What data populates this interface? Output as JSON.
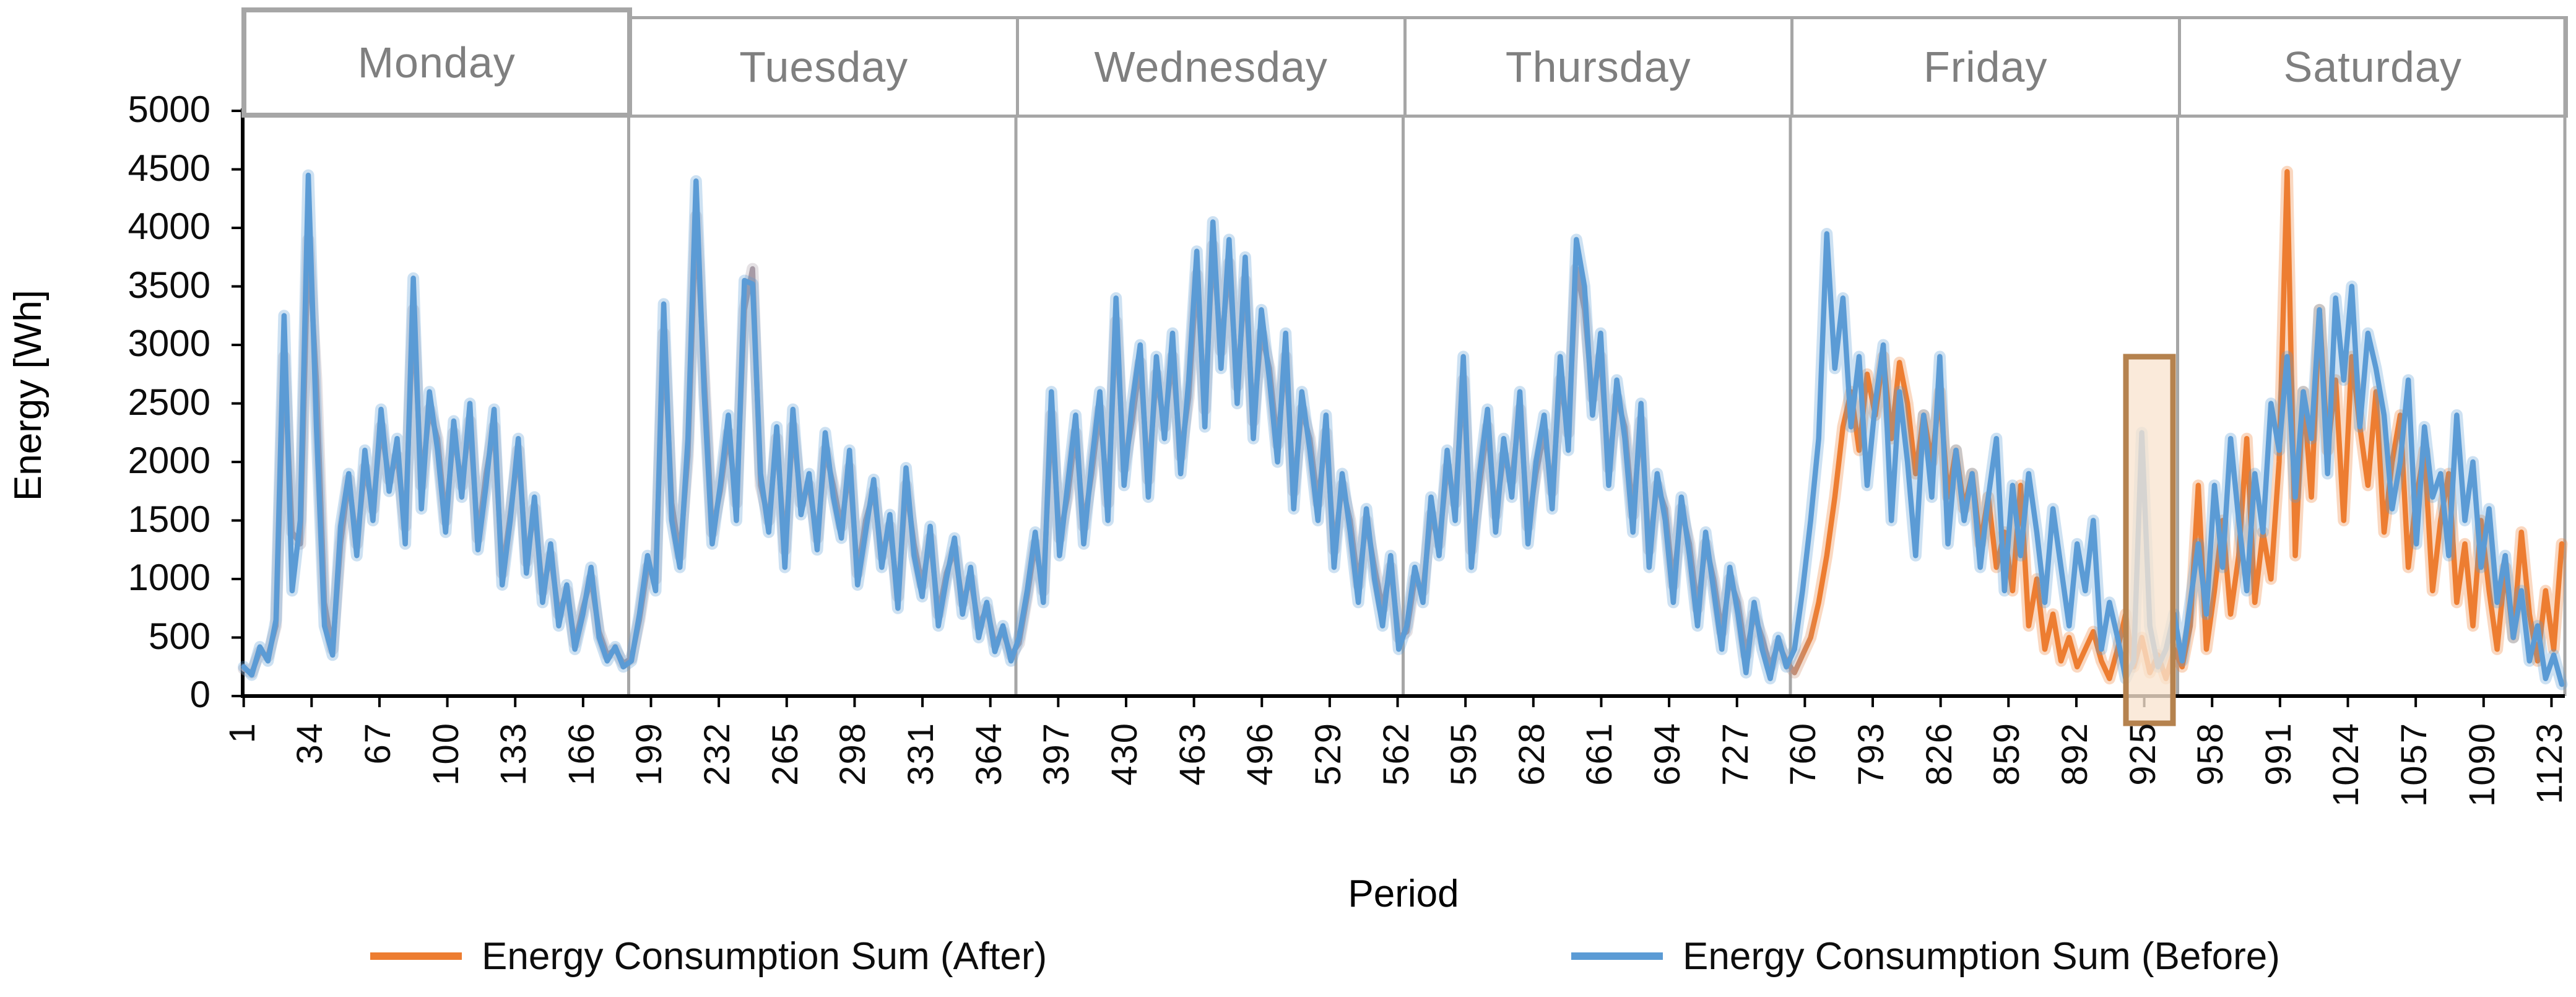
{
  "chart_data": {
    "type": "line",
    "title": "",
    "xlabel": "Period",
    "ylabel": "Energy [Wh]",
    "ylim": [
      0,
      5000
    ],
    "y_tick_labels": [
      "5000",
      "4500",
      "4000",
      "3500",
      "3000",
      "2500",
      "2000",
      "1500",
      "1000",
      "500",
      "0"
    ],
    "x_tick_labels": [
      "1",
      "34",
      "67",
      "100",
      "133",
      "166",
      "199",
      "232",
      "265",
      "298",
      "331",
      "364",
      "397",
      "430",
      "463",
      "496",
      "529",
      "562",
      "595",
      "628",
      "661",
      "694",
      "727",
      "760",
      "793",
      "826",
      "859",
      "892",
      "925",
      "958",
      "991",
      "1024",
      "1057",
      "1090",
      "1123"
    ],
    "x_range": [
      1,
      1129
    ],
    "grid": false,
    "legend_position": "bottom",
    "day_panels": [
      "Monday",
      "Tuesday",
      "Wednesday",
      "Thursday",
      "Friday",
      "Saturday"
    ],
    "highlight_region": {
      "period_start": 916,
      "period_end": 939,
      "value_top_wh": 2900,
      "value_bottom_wh": -230,
      "fill_color": "#F9E4CF",
      "border_color": "#B5824E"
    },
    "sampling": {
      "points": 288,
      "period_start": 1,
      "period_end": 1129
    },
    "series": [
      {
        "name": "Energy Consumption Sum (After)",
        "color": "#ED7D31",
        "overlap_shadow_color": "#A79BA6",
        "values": [
          230,
          200,
          380,
          340,
          600,
          2900,
          1400,
          1300,
          3900,
          2700,
          800,
          400,
          1300,
          1850,
          1300,
          1950,
          1600,
          2300,
          1850,
          2050,
          1450,
          3300,
          1800,
          2450,
          2200,
          1500,
          2250,
          1800,
          2350,
          1350,
          1900,
          2300,
          1050,
          1550,
          2100,
          1150,
          1600,
          900,
          1200,
          700,
          900,
          450,
          750,
          1000,
          550,
          350,
          400,
          280,
          320,
          650,
          1100,
          1000,
          3100,
          1650,
          1200,
          2050,
          4100,
          2750,
          1400,
          1750,
          2250,
          1650,
          3300,
          3650,
          1800,
          1500,
          2200,
          1250,
          2300,
          1650,
          1800,
          1350,
          2100,
          1800,
          1450,
          1950,
          1050,
          1500,
          1750,
          1200,
          1450,
          850,
          1800,
          1300,
          950,
          1350,
          700,
          1050,
          1250,
          800,
          1000,
          600,
          750,
          450,
          550,
          350,
          450,
          850,
          1300,
          900,
          2400,
          1350,
          1700,
          2250,
          1450,
          1900,
          2450,
          1650,
          3200,
          1950,
          2350,
          2850,
          1850,
          2750,
          2300,
          2900,
          2050,
          2550,
          3600,
          2450,
          3850,
          2950,
          3700,
          2650,
          3550,
          2350,
          3100,
          2800,
          2150,
          2900,
          1750,
          2450,
          2200,
          1650,
          2250,
          1250,
          1800,
          1500,
          950,
          1500,
          1100,
          750,
          1100,
          500,
          550,
          1000,
          900,
          1550,
          1300,
          1950,
          1650,
          2700,
          1250,
          1800,
          2300,
          1550,
          2050,
          1850,
          2450,
          1450,
          1900,
          2250,
          1750,
          2700,
          2250,
          3650,
          3300,
          2550,
          2900,
          1950,
          2550,
          2300,
          1550,
          2350,
          1250,
          1800,
          1600,
          950,
          1600,
          1300,
          750,
          1300,
          1000,
          550,
          1000,
          800,
          350,
          700,
          500,
          250,
          450,
          300,
          200,
          350,
          500,
          800,
          1200,
          1700,
          2300,
          2600,
          2100,
          2750,
          2400,
          2900,
          2200,
          2850,
          2500,
          1900,
          2400,
          2000,
          2600,
          1700,
          2100,
          1600,
          1900,
          1300,
          1700,
          1100,
          1400,
          900,
          1800,
          600,
          1000,
          400,
          700,
          300,
          500,
          250,
          400,
          550,
          300,
          150,
          400,
          700,
          250,
          500,
          200,
          350,
          150,
          400,
          250,
          600,
          1800,
          400,
          900,
          1500,
          700,
          1200,
          2200,
          800,
          1400,
          1000,
          2000,
          4480,
          1200,
          2600,
          1700,
          3300,
          2100,
          2700,
          1500,
          2900,
          2300,
          1800,
          2600,
          1400,
          2000,
          2400,
          1100,
          1700,
          2100,
          900,
          1500,
          1900,
          800,
          1300,
          600,
          1500,
          900,
          400,
          1100,
          500,
          1400,
          700,
          300,
          900,
          400,
          1300
        ]
      },
      {
        "name": "Energy Consumption Sum (Before)",
        "color": "#5B9BD5",
        "values": [
          250,
          180,
          420,
          300,
          650,
          3250,
          900,
          1500,
          4450,
          2300,
          600,
          350,
          1450,
          1900,
          1200,
          2100,
          1500,
          2450,
          1750,
          2200,
          1300,
          3570,
          1600,
          2600,
          2100,
          1400,
          2350,
          1700,
          2500,
          1250,
          1800,
          2450,
          950,
          1500,
          2200,
          1050,
          1700,
          800,
          1300,
          600,
          950,
          400,
          700,
          1100,
          500,
          300,
          420,
          250,
          300,
          700,
          1200,
          900,
          3350,
          1500,
          1100,
          2200,
          4400,
          2600,
          1300,
          1800,
          2400,
          1500,
          3550,
          3520,
          1900,
          1400,
          2300,
          1100,
          2450,
          1550,
          1900,
          1250,
          2250,
          1700,
          1350,
          2100,
          950,
          1400,
          1850,
          1100,
          1550,
          750,
          1950,
          1200,
          850,
          1450,
          600,
          1000,
          1350,
          700,
          1100,
          500,
          800,
          380,
          600,
          300,
          500,
          900,
          1400,
          800,
          2600,
          1200,
          1800,
          2400,
          1300,
          2000,
          2600,
          1500,
          3400,
          1800,
          2500,
          3000,
          1700,
          2900,
          2200,
          3100,
          1900,
          2700,
          3800,
          2300,
          4050,
          2800,
          3900,
          2500,
          3750,
          2200,
          3300,
          2700,
          2000,
          3100,
          1600,
          2600,
          2100,
          1500,
          2400,
          1100,
          1900,
          1400,
          800,
          1600,
          1000,
          600,
          1200,
          400,
          600,
          1100,
          800,
          1700,
          1200,
          2100,
          1500,
          2900,
          1100,
          1900,
          2450,
          1400,
          2200,
          1700,
          2600,
          1300,
          2000,
          2400,
          1600,
          2900,
          2100,
          3900,
          3500,
          2400,
          3100,
          1800,
          2700,
          2200,
          1400,
          2500,
          1100,
          1900,
          1500,
          800,
          1700,
          1200,
          600,
          1400,
          900,
          400,
          1100,
          700,
          200,
          800,
          400,
          150,
          500,
          250,
          400,
          900,
          1500,
          2200,
          3950,
          2800,
          3400,
          2300,
          2900,
          1800,
          2500,
          3000,
          1500,
          2600,
          2000,
          1200,
          2400,
          1700,
          2900,
          1300,
          2100,
          1500,
          1900,
          1100,
          1700,
          2200,
          900,
          1800,
          1200,
          1900,
          1400,
          800,
          1600,
          1100,
          600,
          1300,
          900,
          1500,
          400,
          800,
          500,
          150,
          300,
          2250,
          600,
          250,
          400,
          700,
          300,
          800,
          1300,
          700,
          1800,
          1100,
          2200,
          1500,
          900,
          1900,
          1400,
          2500,
          2100,
          2900,
          1700,
          2600,
          2200,
          3300,
          1900,
          3400,
          2700,
          3500,
          2300,
          3100,
          2800,
          2400,
          1600,
          2000,
          2700,
          1300,
          2300,
          1700,
          1900,
          1200,
          2400,
          1500,
          2000,
          1100,
          1600,
          800,
          1200,
          500,
          900,
          300,
          600,
          150,
          350,
          100
        ]
      }
    ]
  },
  "legend": {
    "items": [
      {
        "label": "Energy Consumption Sum (After)",
        "color": "#ED7D31"
      },
      {
        "label": "Energy Consumption Sum (Before)",
        "color": "#5B9BD5"
      }
    ]
  },
  "colors": {
    "axis": "#000000",
    "panel_border": "#A6A6A6",
    "day_label_text": "#7F7F7F",
    "tick_text": "#0D0D0D",
    "series_after": "#ED7D31",
    "series_before": "#5B9BD5",
    "overlap_shadow": "#A79BA6",
    "highlight_fill": "#F9E4CF",
    "highlight_border": "#B5824E"
  }
}
